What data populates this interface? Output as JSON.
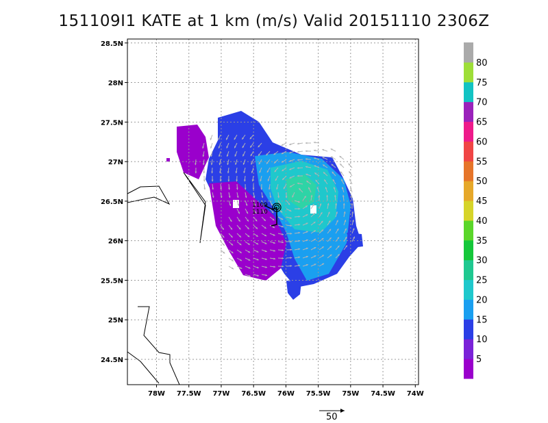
{
  "title": "151109I1 KATE at 1 km (m/s) Valid 20151110 2306Z",
  "map": {
    "lat_labels": [
      "28.5N",
      "28N",
      "27.5N",
      "27N",
      "26.5N",
      "26N",
      "25.5N",
      "25N",
      "24.5N"
    ],
    "lon_labels": [
      "78W",
      "77.5W",
      "77W",
      "76.5W",
      "76W",
      "75.5W",
      "75W",
      "74.5W",
      "74W"
    ],
    "lat_ticks": [
      28.5,
      28.0,
      27.5,
      27.0,
      26.5,
      26.0,
      25.5,
      25.0,
      24.5
    ],
    "lon_ticks": [
      -78.0,
      -77.5,
      -77.0,
      -76.5,
      -76.0,
      -75.5,
      -75.0,
      -74.5,
      -74.0
    ],
    "grid": "dotted",
    "storm_label_1": "1109",
    "storm_label_2": "1110"
  },
  "colorbar": {
    "labels": [
      "5",
      "10",
      "15",
      "20",
      "25",
      "30",
      "35",
      "40",
      "45",
      "50",
      "55",
      "60",
      "65",
      "70",
      "75",
      "80"
    ],
    "colors": [
      "#9a00cc",
      "#7a22d8",
      "#2b3fe6",
      "#1a9ff0",
      "#1fc8cc",
      "#1fc890",
      "#15c73a",
      "#5ad62a",
      "#d6d42a",
      "#e6a82a",
      "#e6752a",
      "#f04545",
      "#ee1a8a",
      "#9a22bb",
      "#12c3c3",
      "#9ede38",
      "#aaaaaa"
    ]
  },
  "vector_scale": {
    "label": "50"
  }
}
